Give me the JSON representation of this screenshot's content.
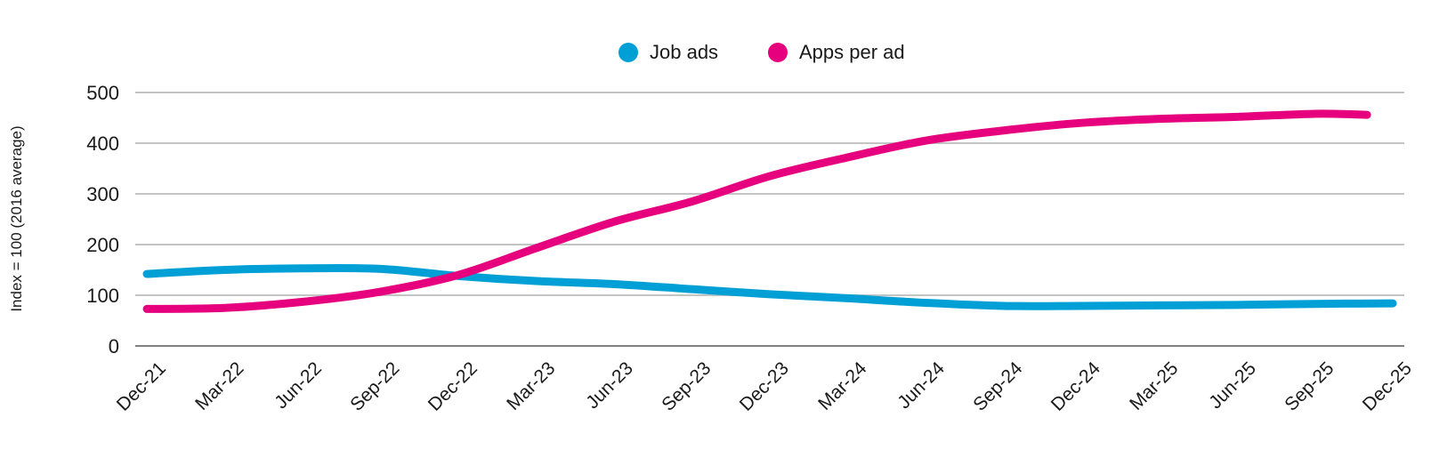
{
  "chart_data": {
    "type": "line",
    "title": "",
    "xlabel": "",
    "ylabel": "Index = 100 (2016 average)",
    "ylim": [
      0,
      500
    ],
    "yticks": [
      0,
      100,
      200,
      300,
      400,
      500
    ],
    "grid": true,
    "legend_position": "top-center",
    "categories": [
      "Dec-21",
      "Mar-22",
      "Jun-22",
      "Sep-22",
      "Dec-22",
      "Mar-23",
      "Jun-23",
      "Sep-23",
      "Dec-23",
      "Mar-24",
      "Jun-24",
      "Sep-24",
      "Dec-24",
      "Mar-25",
      "Jun-25",
      "Sep-25",
      "Dec-25"
    ],
    "series": [
      {
        "name": "Job ads",
        "color": "#00a0d6",
        "x": [
          0,
          1,
          2,
          3,
          4,
          5,
          6,
          7,
          8,
          9,
          10,
          11,
          12,
          13,
          14,
          15,
          16
        ],
        "values": [
          142,
          150,
          153,
          152,
          138,
          128,
          122,
          112,
          102,
          94,
          85,
          79,
          79,
          80,
          81,
          83,
          84
        ]
      },
      {
        "name": "Apps per ad",
        "color": "#e6007e",
        "x": [
          0,
          1,
          2,
          3,
          4,
          5,
          6,
          7,
          8,
          9,
          10,
          11,
          12,
          13,
          14,
          15,
          15.67
        ],
        "values": [
          73,
          75,
          87,
          107,
          140,
          193,
          245,
          285,
          335,
          372,
          405,
          425,
          440,
          448,
          452,
          458,
          456
        ]
      }
    ]
  }
}
